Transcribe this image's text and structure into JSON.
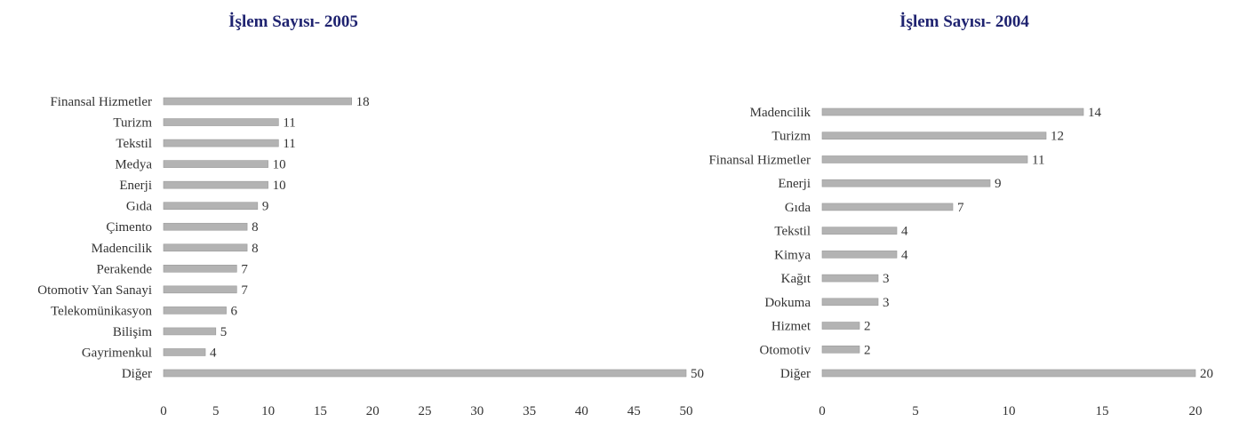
{
  "colors": {
    "bar": "#b3b3b3",
    "title": "#1f2370",
    "text": "#333333"
  },
  "chart_data": [
    {
      "type": "bar",
      "orientation": "horizontal",
      "title": "İşlem Sayısı- 2005",
      "categories": [
        "Finansal Hizmetler",
        "Turizm",
        "Tekstil",
        "Medya",
        "Enerji",
        "Gıda",
        "Çimento",
        "Madencilik",
        "Perakende",
        "Otomotiv Yan Sanayi",
        "Telekomünikasyon",
        "Bilişim",
        "Gayrimenkul",
        "Diğer"
      ],
      "values": [
        18,
        11,
        11,
        10,
        10,
        9,
        8,
        8,
        7,
        7,
        6,
        5,
        4,
        50
      ],
      "xlim": [
        0,
        50
      ],
      "xticks": [
        0,
        5,
        10,
        15,
        20,
        25,
        30,
        35,
        40,
        45,
        50
      ],
      "grid": false,
      "legend": "none"
    },
    {
      "type": "bar",
      "orientation": "horizontal",
      "title": "İşlem Sayısı- 2004",
      "categories": [
        "Madencilik",
        "Turizm",
        "Finansal Hizmetler",
        "Enerji",
        "Gıda",
        "Tekstil",
        "Kimya",
        "Kağıt",
        "Dokuma",
        "Hizmet",
        "Otomotiv",
        "Diğer"
      ],
      "values": [
        14,
        12,
        11,
        9,
        7,
        4,
        4,
        3,
        3,
        2,
        2,
        20
      ],
      "xlim": [
        0,
        20
      ],
      "xticks": [
        0,
        5,
        10,
        15,
        20
      ],
      "grid": false,
      "legend": "none"
    }
  ]
}
